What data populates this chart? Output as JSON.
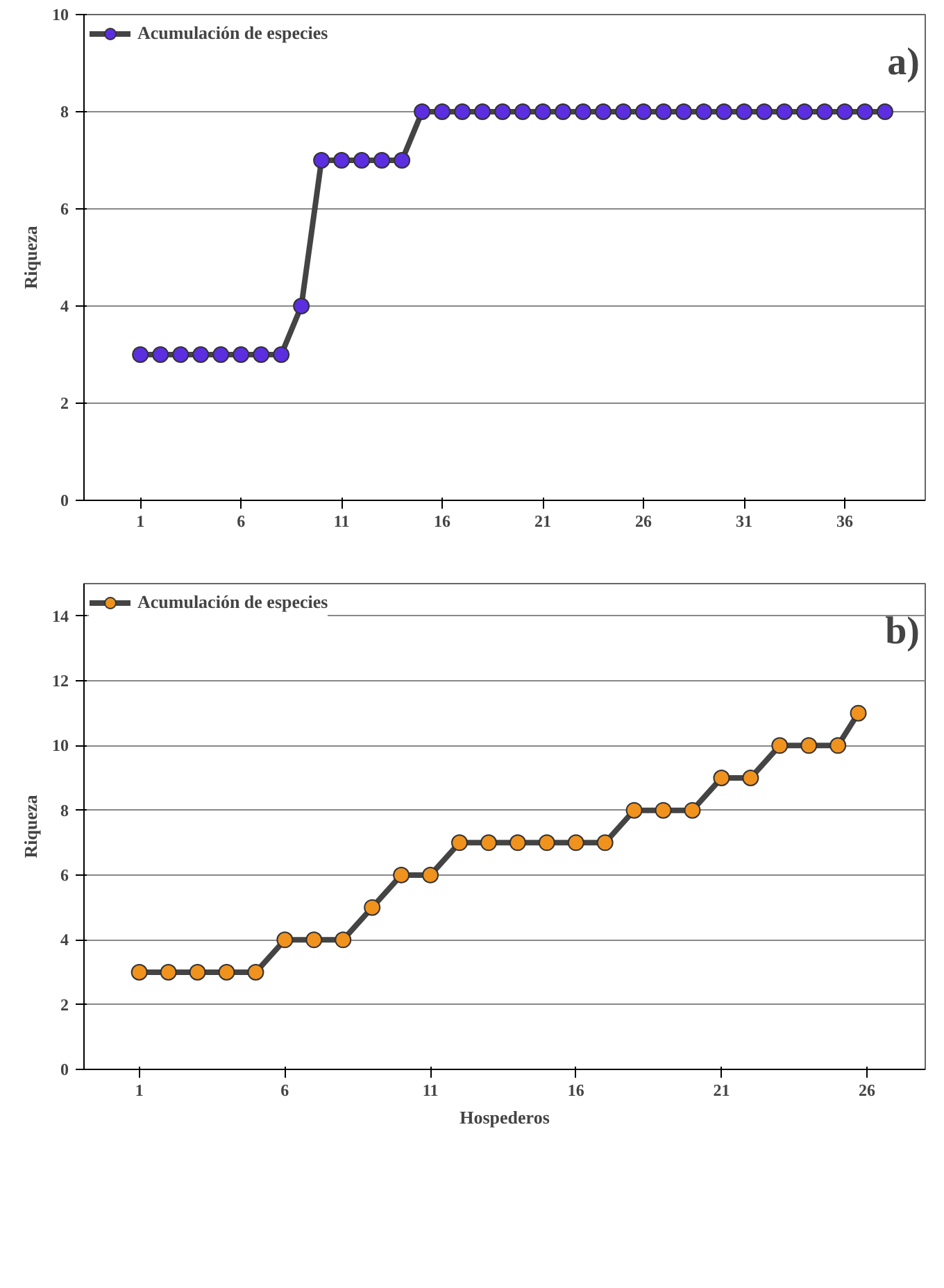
{
  "chart_data": [
    {
      "type": "line",
      "ylabel": "Riqueza",
      "annotations": [
        "a)"
      ],
      "x": [
        1,
        2,
        3,
        4,
        5,
        6,
        7,
        8,
        9,
        10,
        11,
        12,
        13,
        14,
        15,
        16,
        17,
        18,
        19,
        20,
        21,
        22,
        23,
        24,
        25,
        26,
        27,
        28,
        29,
        30,
        31,
        32,
        33,
        34,
        35,
        36,
        37,
        38
      ],
      "series": [
        {
          "name": "Acumulación de especies",
          "color": "#5b2ee0",
          "values": [
            3,
            3,
            3,
            3,
            3,
            3,
            3,
            3,
            4,
            7,
            7,
            7,
            7,
            7,
            8,
            8,
            8,
            8,
            8,
            8,
            8,
            8,
            8,
            8,
            8,
            8,
            8,
            8,
            8,
            8,
            8,
            8,
            8,
            8,
            8,
            8,
            8,
            8
          ]
        }
      ],
      "xlim": [
        -1.8,
        40
      ],
      "xticks": [
        1,
        6,
        11,
        16,
        21,
        26,
        31,
        36
      ],
      "ylim": [
        0,
        10
      ],
      "yticks": [
        0,
        2,
        4,
        6,
        8,
        10
      ],
      "grid": "y",
      "legend": "top left",
      "marker": "circle",
      "line_style": "solid"
    },
    {
      "type": "line",
      "xlabel": "Hospederos",
      "ylabel": "Riqueza",
      "annotations": [
        "b)"
      ],
      "x": [
        1,
        2,
        3,
        4,
        5,
        6,
        7,
        8,
        9,
        10,
        11,
        12,
        13,
        14,
        15,
        16,
        17,
        18,
        19,
        20,
        21,
        22,
        23,
        24,
        25,
        25.7
      ],
      "series": [
        {
          "name": "Acumulación de especies",
          "color": "#f0921e",
          "values": [
            3,
            3,
            3,
            3,
            3,
            4,
            4,
            4,
            5,
            6,
            6,
            7,
            7,
            7,
            7,
            7,
            7,
            8,
            8,
            8,
            9,
            9,
            10,
            10,
            10,
            11
          ]
        }
      ],
      "xlim": [
        -0.9,
        28
      ],
      "xticks": [
        1,
        6,
        11,
        16,
        21,
        26
      ],
      "ylim": [
        0,
        15
      ],
      "yticks": [
        0,
        2,
        4,
        6,
        8,
        10,
        12,
        14
      ],
      "grid": "y",
      "legend": "top left",
      "marker": "circle",
      "line_style": "solid"
    }
  ]
}
